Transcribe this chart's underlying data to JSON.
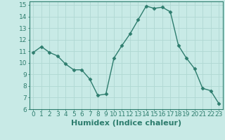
{
  "x": [
    0,
    1,
    2,
    3,
    4,
    5,
    6,
    7,
    8,
    9,
    10,
    11,
    12,
    13,
    14,
    15,
    16,
    17,
    18,
    19,
    20,
    21,
    22,
    23
  ],
  "y": [
    10.9,
    11.4,
    10.9,
    10.6,
    9.9,
    9.4,
    9.4,
    8.6,
    7.2,
    7.3,
    10.4,
    11.5,
    12.5,
    13.7,
    14.9,
    14.7,
    14.8,
    14.4,
    11.5,
    10.4,
    9.5,
    7.8,
    7.6,
    6.5
  ],
  "line_color": "#2e7d6e",
  "marker": "D",
  "marker_size": 2.5,
  "bg_color": "#c8eae6",
  "grid_color": "#b0d8d2",
  "xlabel": "Humidex (Indice chaleur)",
  "ylim": [
    6,
    15.3
  ],
  "xlim": [
    -0.5,
    23.5
  ],
  "yticks": [
    6,
    7,
    8,
    9,
    10,
    11,
    12,
    13,
    14,
    15
  ],
  "xticks": [
    0,
    1,
    2,
    3,
    4,
    5,
    6,
    7,
    8,
    9,
    10,
    11,
    12,
    13,
    14,
    15,
    16,
    17,
    18,
    19,
    20,
    21,
    22,
    23
  ],
  "xtick_labels": [
    "0",
    "1",
    "2",
    "3",
    "4",
    "5",
    "6",
    "7",
    "8",
    "9",
    "10",
    "11",
    "12",
    "13",
    "14",
    "15",
    "16",
    "17",
    "18",
    "19",
    "20",
    "21",
    "22",
    "23"
  ],
  "tick_color": "#2e7d6e",
  "axis_color": "#2e7d6e",
  "font_size": 6.5,
  "xlabel_fontsize": 8
}
